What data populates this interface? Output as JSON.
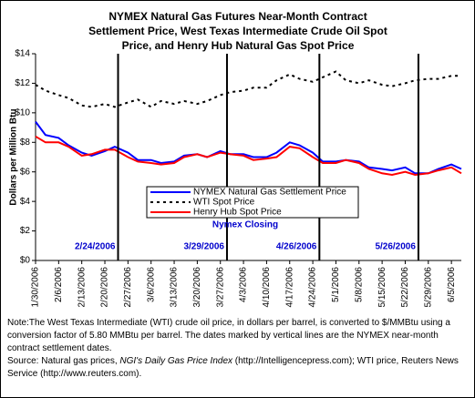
{
  "chart_data": {
    "type": "line",
    "title": "NYMEX Natural Gas Futures Near-Month Contract Settlement Price, West Texas Intermediate Crude Oil Spot Price, and Henry Hub Natural Gas Spot Price",
    "y_label": "Dollars per Million Btu",
    "x": [
      "1/30/2006",
      "2/2/2006",
      "2/6/2006",
      "2/9/2006",
      "2/13/2006",
      "2/16/2006",
      "2/20/2006",
      "2/23/2006",
      "2/27/2006",
      "3/2/2006",
      "3/6/2006",
      "3/9/2006",
      "3/13/2006",
      "3/16/2006",
      "3/20/2006",
      "3/23/2006",
      "3/27/2006",
      "3/30/2006",
      "4/3/2006",
      "4/6/2006",
      "4/10/2006",
      "4/13/2006",
      "4/17/2006",
      "4/20/2006",
      "4/24/2006",
      "4/27/2006",
      "5/1/2006",
      "5/4/2006",
      "5/8/2006",
      "5/11/2006",
      "5/15/2006",
      "5/18/2006",
      "5/22/2006",
      "5/25/2006",
      "5/29/2006",
      "6/1/2006",
      "6/5/2006",
      "6/8/2006"
    ],
    "series": [
      {
        "name": "NYMEX Natural Gas Settlement Price",
        "color": "#0000ff",
        "dash": false,
        "values": [
          9.4,
          8.5,
          8.3,
          7.8,
          7.3,
          7.1,
          7.4,
          7.7,
          7.3,
          6.8,
          6.8,
          6.6,
          6.7,
          7.1,
          7.2,
          7.0,
          7.4,
          7.2,
          7.2,
          7.0,
          7.0,
          7.3,
          8.0,
          7.8,
          7.3,
          6.7,
          6.7,
          6.8,
          6.7,
          6.3,
          6.2,
          6.1,
          6.3,
          5.9,
          5.9,
          6.2,
          6.5,
          6.2
        ]
      },
      {
        "name": "WTI Spot Price",
        "color": "#000000",
        "dash": true,
        "values": [
          11.9,
          11.5,
          11.2,
          11.0,
          10.5,
          10.4,
          10.6,
          10.4,
          10.7,
          10.9,
          10.4,
          10.8,
          10.6,
          10.8,
          10.6,
          10.8,
          11.2,
          11.4,
          11.5,
          11.7,
          11.7,
          12.2,
          12.6,
          12.3,
          12.1,
          12.4,
          12.8,
          12.2,
          12.0,
          12.2,
          11.9,
          11.8,
          12.0,
          12.2,
          12.3,
          12.3,
          12.5,
          12.5
        ]
      },
      {
        "name": "Henry Hub Spot Price",
        "color": "#ff0000",
        "dash": false,
        "values": [
          8.4,
          8.0,
          8.0,
          7.7,
          7.1,
          7.2,
          7.5,
          7.5,
          7.0,
          6.7,
          6.6,
          6.5,
          6.6,
          7.0,
          7.2,
          7.0,
          7.3,
          7.2,
          7.1,
          6.8,
          6.9,
          7.0,
          7.7,
          7.6,
          7.0,
          6.6,
          6.6,
          6.8,
          6.6,
          6.2,
          5.9,
          5.8,
          6.0,
          5.8,
          5.9,
          6.1,
          6.3,
          5.9
        ]
      }
    ],
    "xlim": [
      "1/30/2006",
      "6/8/2006"
    ],
    "xticks": [
      "1/30/2006",
      "2/6/2006",
      "2/13/2006",
      "2/20/2006",
      "2/27/2006",
      "3/6/2006",
      "3/13/2006",
      "3/20/2006",
      "3/27/2006",
      "4/3/2006",
      "4/10/2006",
      "4/17/2006",
      "4/24/2006",
      "5/1/2006",
      "5/8/2006",
      "5/15/2006",
      "5/22/2006",
      "5/29/2006",
      "6/5/2006"
    ],
    "ylim": [
      0,
      14
    ],
    "yticks": [
      {
        "value": 0,
        "label": "$0"
      },
      {
        "value": 2,
        "label": "$2"
      },
      {
        "value": 4,
        "label": "$4"
      },
      {
        "value": 6,
        "label": "$6"
      },
      {
        "value": 8,
        "label": "$8"
      },
      {
        "value": 10,
        "label": "$10"
      },
      {
        "value": 12,
        "label": "$12"
      },
      {
        "value": 14,
        "label": "$14"
      }
    ],
    "markers": [
      "2/24/2006",
      "3/29/2006",
      "4/26/2006",
      "5/26/2006"
    ],
    "marker_title": "Nymex Closing",
    "note": "Note:The West Texas Intermediate (WTI) crude oil price, in dollars per barrel,  is converted to $/MMBtu using a conversion factor of 5.80 MMBtu per barrel.  The dates marked by vertical lines are the NYMEX near-month contract settlement dates.",
    "source": [
      "Source: Natural gas prices, ",
      "NGI's Daily Gas Price Index",
      " (http://Intelligencepress.com); WTI price, Reuters News Service (http://www.reuters.com)."
    ]
  }
}
